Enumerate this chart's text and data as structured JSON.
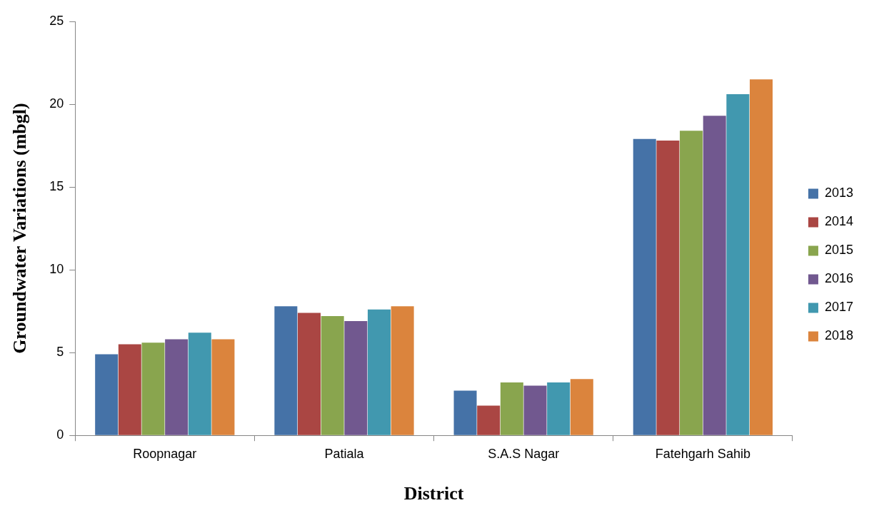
{
  "chart_data": {
    "type": "bar",
    "xlabel": "District",
    "ylabel": "Groundwater Variations (mbgl)",
    "categories": [
      "Roopnagar",
      "Patiala",
      "S.A.S Nagar",
      "Fatehgarh Sahib"
    ],
    "series": [
      {
        "name": "2013",
        "color": "#4572a7",
        "values": [
          4.9,
          7.8,
          2.7,
          17.9
        ]
      },
      {
        "name": "2014",
        "color": "#aa4643",
        "values": [
          5.5,
          7.4,
          1.8,
          17.8
        ]
      },
      {
        "name": "2015",
        "color": "#89a54e",
        "values": [
          5.6,
          7.2,
          3.2,
          18.4
        ]
      },
      {
        "name": "2016",
        "color": "#71588f",
        "values": [
          5.8,
          6.9,
          3.0,
          19.3
        ]
      },
      {
        "name": "2017",
        "color": "#4198af",
        "values": [
          6.2,
          7.6,
          3.2,
          20.6
        ]
      },
      {
        "name": "2018",
        "color": "#db843d",
        "values": [
          5.8,
          7.8,
          3.4,
          21.5
        ]
      }
    ],
    "ylim": [
      0,
      25
    ],
    "yticks": [
      0,
      5,
      10,
      15,
      20,
      25
    ],
    "grid": false,
    "legend": "right"
  }
}
